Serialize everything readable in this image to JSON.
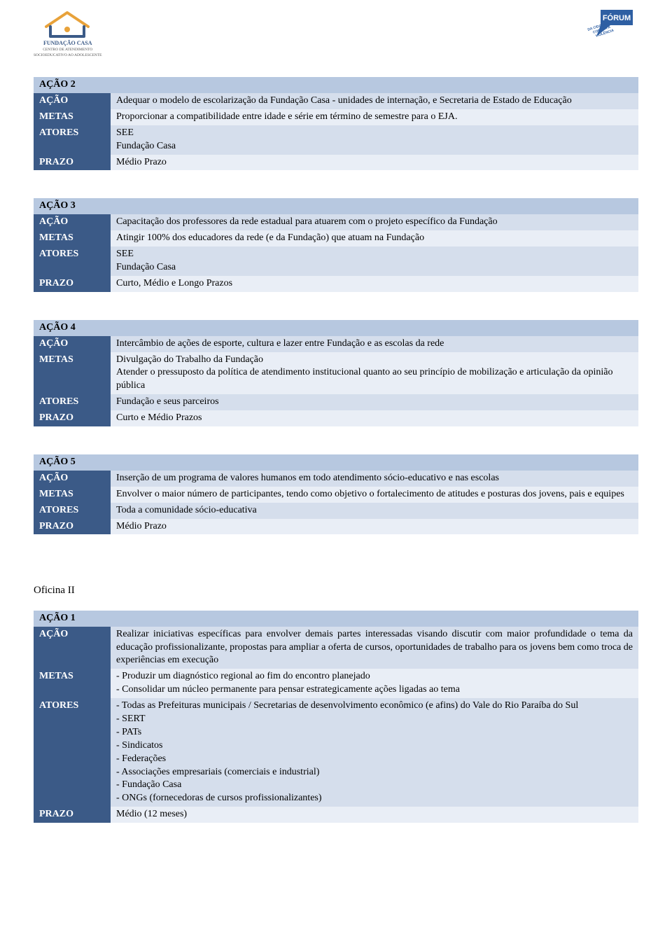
{
  "colors": {
    "header_bg": "#b7c8e0",
    "label_bg": "#3b5a87",
    "row_light": "#e9eef6",
    "row_med": "#d5deec",
    "text": "#000000",
    "label_text": "#ffffff"
  },
  "logos": {
    "left_title": "FUNDAÇÃO CASA",
    "left_sub1": "CENTRO DE ATENDIMENTO",
    "left_sub2": "SOCIOEDUCATIVO AO ADOLESCENTE",
    "right_label": "FÓRUM"
  },
  "sections": [
    {
      "title": "AÇÃO 2",
      "rows": [
        {
          "label": "AÇÃO",
          "value": "Adequar o modelo de escolarização da Fundação Casa - unidades de internação, e  Secretaria de Estado de Educação",
          "justify": true
        },
        {
          "label": "METAS",
          "value": "Proporcionar a compatibilidade entre idade e série em término de semestre para o EJA."
        },
        {
          "label": "ATORES",
          "value": "SEE\nFundação Casa"
        },
        {
          "label": "PRAZO",
          "value": "Médio Prazo"
        }
      ]
    },
    {
      "title": "AÇÃO 3",
      "rows": [
        {
          "label": "AÇÃO",
          "value": "Capacitação dos professores da rede estadual para atuarem com o projeto específico da Fundação"
        },
        {
          "label": "METAS",
          "value": "Atingir 100% dos educadores da rede (e da Fundação) que atuam na Fundação"
        },
        {
          "label": "ATORES",
          "value": "SEE\nFundação Casa"
        },
        {
          "label": "PRAZO",
          "value": "Curto, Médio e Longo Prazos"
        }
      ]
    },
    {
      "title": "AÇÃO 4",
      "rows": [
        {
          "label": "AÇÃO",
          "value": "Intercâmbio de ações de esporte, cultura e lazer entre Fundação e as escolas da rede"
        },
        {
          "label": "METAS",
          "value": "Divulgação do Trabalho da Fundação\nAtender o pressuposto da política de atendimento institucional quanto ao seu princípio de mobilização e articulação da opinião pública"
        },
        {
          "label": "ATORES",
          "value": "Fundação e seus parceiros"
        },
        {
          "label": "PRAZO",
          "value": "Curto e Médio Prazos"
        }
      ]
    },
    {
      "title": "AÇÃO 5",
      "rows": [
        {
          "label": "AÇÃO",
          "value": "Inserção de um programa de valores humanos em todo atendimento sócio-educativo e nas escolas"
        },
        {
          "label": "METAS",
          "value": "Envolver o maior número de participantes, tendo como objetivo o fortalecimento de atitudes e posturas dos jovens, pais e equipes",
          "justify": true
        },
        {
          "label": "ATORES",
          "value": "Toda a comunidade sócio-educativa"
        },
        {
          "label": "PRAZO",
          "value": "Médio Prazo"
        }
      ]
    }
  ],
  "oficina": {
    "heading": "Oficina II",
    "title": "AÇÃO 1",
    "rows": [
      {
        "label": "AÇÃO",
        "value": "Realizar iniciativas específicas para envolver demais partes interessadas visando discutir com maior profundidade o tema da educação profissionalizante, propostas para ampliar a oferta de cursos, oportunidades de trabalho para os jovens bem como troca de experiências em execução",
        "justify": true
      },
      {
        "label": "METAS",
        "value": "- Produzir um diagnóstico regional ao fim do encontro planejado\n- Consolidar um núcleo permanente para pensar estrategicamente ações ligadas ao tema"
      },
      {
        "label": "ATORES",
        "value": "- Todas as Prefeituras municipais / Secretarias de desenvolvimento econômico (e afins) do Vale do Rio Paraíba do Sul\n- SERT\n- PATs\n- Sindicatos\n- Federações\n- Associações empresariais (comerciais e industrial)\n- Fundação Casa\n- ONGs (fornecedoras de cursos profissionalizantes)"
      },
      {
        "label": "PRAZO",
        "value": "Médio (12 meses)"
      }
    ]
  },
  "row_shading": [
    "row_med",
    "row_light",
    "row_med",
    "row_light"
  ]
}
